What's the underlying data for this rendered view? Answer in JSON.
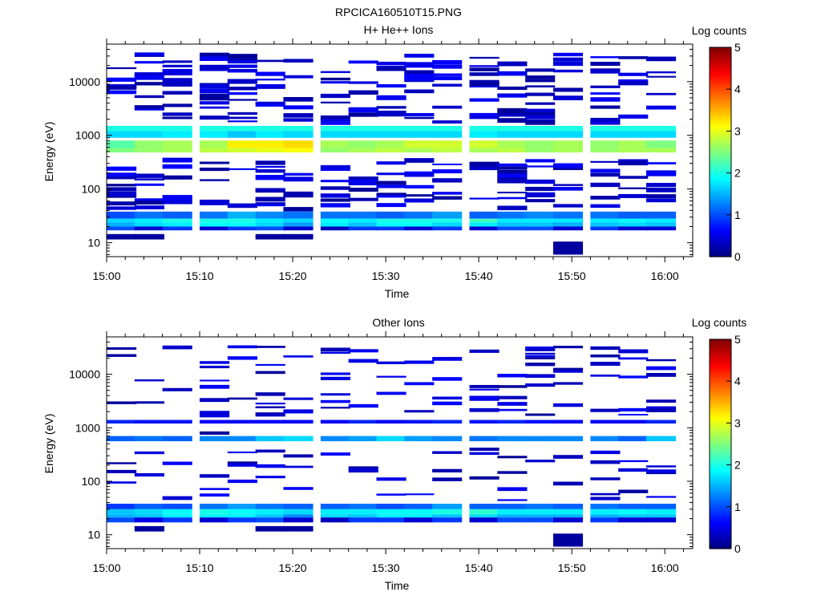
{
  "figure": {
    "title": "RPCICA160510T15.PNG"
  },
  "colors": {
    "colormap": [
      "#00007f",
      "#0000ff",
      "#007fff",
      "#00ffff",
      "#7fff7f",
      "#ffff00",
      "#ff7f00",
      "#ff0000",
      "#7f0000"
    ]
  },
  "chart_data": [
    {
      "type": "heatmap",
      "title": "H+ He++ Ions",
      "xlabel": "Time",
      "ylabel": "Energy (eV)",
      "x_ticks": [
        "15:00",
        "15:10",
        "15:20",
        "15:30",
        "15:40",
        "15:50",
        "16:00"
      ],
      "y_ticks": [
        "10",
        "100",
        "1000",
        "10000"
      ],
      "y_scale": "log",
      "ylim": [
        5.5,
        50000
      ],
      "xlim_minutes": [
        0,
        63
      ],
      "x_bins": [
        "15:00",
        "15:03",
        "15:06",
        "15:10",
        "15:13",
        "15:16",
        "15:19",
        "15:23",
        "15:26",
        "15:29",
        "15:32",
        "15:35",
        "15:39",
        "15:42",
        "15:45",
        "15:48",
        "15:52",
        "15:55",
        "15:58"
      ],
      "colorbar": {
        "label": "Log counts",
        "ticks": [
          "0",
          "1",
          "2",
          "3",
          "4",
          "5"
        ],
        "range": [
          0,
          5
        ]
      },
      "bands": [
        {
          "energy": [
            1200,
            1500
          ],
          "log_counts": [
            2.0,
            2.0,
            2.0,
            2.0,
            2.0,
            2.0,
            2.0,
            2.0,
            2.0,
            2.0,
            2.0,
            2.0,
            2.0,
            2.0,
            2.0,
            2.0,
            2.0,
            2.0,
            2.0
          ]
        },
        {
          "energy": [
            900,
            1200
          ],
          "log_counts": [
            1.7,
            1.7,
            1.8,
            1.8,
            1.6,
            1.8,
            1.7,
            1.7,
            1.7,
            1.7,
            1.7,
            1.7,
            1.8,
            1.7,
            1.7,
            1.7,
            1.7,
            1.7,
            1.7
          ]
        },
        {
          "energy": [
            580,
            800
          ],
          "log_counts": [
            2.3,
            2.6,
            2.7,
            2.7,
            3.2,
            3.2,
            3.3,
            2.7,
            2.6,
            2.7,
            2.9,
            2.9,
            2.9,
            2.7,
            2.6,
            2.7,
            2.6,
            2.7,
            2.5
          ]
        },
        {
          "energy": [
            480,
            580
          ],
          "log_counts": [
            2.5,
            2.6,
            2.7,
            2.8,
            2.9,
            3.0,
            3.1,
            2.6,
            2.7,
            2.8,
            2.7,
            2.8,
            2.7,
            2.8,
            2.6,
            2.7,
            2.6,
            2.7,
            2.7
          ]
        },
        {
          "energy": [
            28,
            38
          ],
          "log_counts": [
            1.0,
            1.2,
            1.1,
            1.2,
            1.5,
            1.3,
            1.2,
            1.2,
            1.2,
            1.1,
            1.2,
            1.4,
            1.1,
            1.2,
            1.3,
            1.2,
            1.2,
            1.1,
            1.1
          ]
        },
        {
          "energy": [
            24,
            28
          ],
          "log_counts": [
            1.7,
            1.8,
            2.0,
            2.0,
            2.0,
            1.8,
            1.7,
            1.9,
            1.8,
            2.0,
            2.0,
            2.0,
            2.2,
            1.8,
            1.8,
            1.8,
            1.8,
            1.9,
            1.8
          ]
        },
        {
          "energy": [
            20,
            24
          ],
          "log_counts": [
            1.5,
            1.7,
            1.8,
            1.9,
            1.9,
            1.7,
            1.4,
            1.8,
            1.6,
            1.9,
            1.9,
            1.7,
            1.8,
            1.6,
            1.6,
            1.5,
            1.6,
            1.7,
            1.6
          ]
        },
        {
          "energy": [
            17,
            20
          ],
          "log_counts": [
            1.0,
            0.4,
            0.9,
            0.4,
            0.9,
            1.0,
            0.4,
            0.3,
            0.9,
            0.9,
            0.4,
            0.9,
            0.4,
            1.0,
            1.0,
            0.4,
            0.9,
            0.4,
            0.4
          ]
        }
      ],
      "sparse_counts": [
        [
          40000,
          0
        ],
        [
          28000,
          0
        ],
        [
          20000,
          0
        ],
        [
          10000,
          0
        ],
        [
          7000,
          0
        ],
        [
          5000,
          0
        ],
        [
          2700,
          0
        ],
        [
          2200,
          0
        ],
        [
          1700,
          0
        ],
        [
          450,
          0
        ],
        [
          320,
          0
        ],
        [
          280,
          0
        ],
        [
          200,
          0
        ],
        [
          130,
          0
        ],
        [
          65,
          0
        ],
        [
          4000,
          0
        ],
        [
          2500,
          0
        ],
        [
          1900,
          0
        ],
        [
          350,
          0
        ],
        [
          220,
          0
        ],
        [
          140,
          0
        ],
        [
          110,
          0
        ],
        [
          70,
          0
        ],
        [
          42,
          0
        ],
        [
          40,
          0
        ],
        [
          16,
          0
        ],
        [
          12,
          0
        ],
        [
          6000,
          0
        ],
        [
          4000,
          0
        ],
        [
          3000,
          0
        ],
        [
          2000,
          0
        ],
        [
          1600,
          0
        ],
        [
          300,
          0
        ],
        [
          220,
          0
        ],
        [
          150,
          0
        ],
        [
          130,
          0
        ],
        [
          80,
          0
        ],
        [
          50,
          0
        ],
        [
          40,
          0
        ],
        [
          12000,
          0
        ]
      ]
    },
    {
      "type": "heatmap",
      "title": "Other Ions",
      "xlabel": "Time",
      "ylabel": "Energy (eV)",
      "x_ticks": [
        "15:00",
        "15:10",
        "15:20",
        "15:30",
        "15:40",
        "15:50",
        "16:00"
      ],
      "y_ticks": [
        "10",
        "100",
        "1000",
        "10000"
      ],
      "y_scale": "log",
      "ylim": [
        5.5,
        50000
      ],
      "xlim_minutes": [
        0,
        63
      ],
      "x_bins": [
        "15:00",
        "15:03",
        "15:06",
        "15:10",
        "15:13",
        "15:16",
        "15:19",
        "15:23",
        "15:26",
        "15:29",
        "15:32",
        "15:35",
        "15:39",
        "15:42",
        "15:45",
        "15:48",
        "15:52",
        "15:55",
        "15:58"
      ],
      "colorbar": {
        "label": "Log counts",
        "ticks": [
          "0",
          "1",
          "2",
          "3",
          "4",
          "5"
        ],
        "range": [
          0,
          5
        ]
      },
      "bands": [
        {
          "energy": [
            1200,
            1400
          ],
          "log_counts": [
            0.8,
            0.7,
            0.7,
            0.6,
            0.6,
            0.6,
            0.6,
            0.6,
            0.8,
            0.6,
            0.7,
            0.8,
            0.7,
            0.8,
            0.7,
            0.6,
            0.6,
            0.6,
            0.8
          ]
        },
        {
          "energy": [
            560,
            700
          ],
          "log_counts": [
            1.1,
            1.2,
            1.1,
            1.3,
            1.3,
            1.6,
            1.7,
            1.3,
            1.4,
            1.7,
            1.4,
            1.3,
            1.2,
            1.3,
            1.3,
            1.3,
            1.3,
            1.1,
            1.6
          ]
        },
        {
          "energy": [
            30,
            38
          ],
          "log_counts": [
            0.9,
            1.1,
            1.0,
            1.2,
            1.4,
            1.2,
            1.1,
            1.1,
            1.2,
            1.0,
            1.1,
            1.4,
            1.1,
            1.1,
            1.2,
            1.1,
            1.2,
            1.1,
            1.1
          ]
        },
        {
          "energy": [
            24,
            30
          ],
          "log_counts": [
            1.6,
            1.7,
            1.9,
            2.0,
            1.9,
            1.8,
            1.7,
            1.8,
            1.8,
            1.9,
            1.9,
            2.0,
            2.1,
            1.8,
            1.8,
            1.8,
            1.8,
            1.9,
            1.8
          ]
        },
        {
          "energy": [
            21,
            24
          ],
          "log_counts": [
            1.5,
            1.6,
            1.8,
            1.8,
            1.8,
            1.6,
            1.3,
            1.7,
            1.6,
            1.8,
            1.8,
            1.6,
            1.7,
            1.5,
            1.5,
            1.5,
            1.5,
            1.6,
            1.6
          ]
        },
        {
          "energy": [
            17,
            21
          ],
          "log_counts": [
            1.0,
            0.5,
            0.9,
            0.4,
            0.9,
            1.0,
            0.4,
            0.3,
            0.9,
            0.9,
            0.4,
            0.9,
            0.4,
            1.0,
            1.0,
            0.4,
            0.9,
            0.4,
            0.4
          ]
        }
      ]
    }
  ]
}
